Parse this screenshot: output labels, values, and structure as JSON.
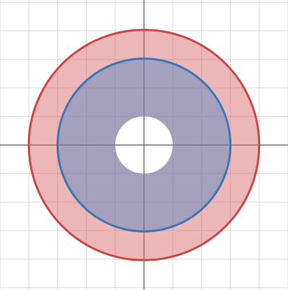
{
  "chart_data": {
    "type": "region",
    "title": "",
    "xlabel": "",
    "ylabel": "",
    "xlim": [
      -5,
      5
    ],
    "ylim": [
      -5.08,
      5.08
    ],
    "grid": true,
    "grid_step": 1,
    "axes_visible": true,
    "tick_labels_visible": false,
    "regions": [
      {
        "name": "",
        "shape": "annulus",
        "center": [
          0,
          0
        ],
        "inner_radius": 1,
        "outer_radius": 4,
        "fill_color": "#d95f5f",
        "fill_opacity": 0.45,
        "boundary": "outer",
        "boundary_color": "#c94545"
      },
      {
        "name": "",
        "shape": "annulus",
        "center": [
          0,
          0
        ],
        "inner_radius": 1,
        "outer_radius": 3,
        "fill_color": "#4a86c6",
        "fill_opacity": 0.45,
        "boundary": "outer",
        "boundary_color": "#3a76b6"
      }
    ]
  }
}
